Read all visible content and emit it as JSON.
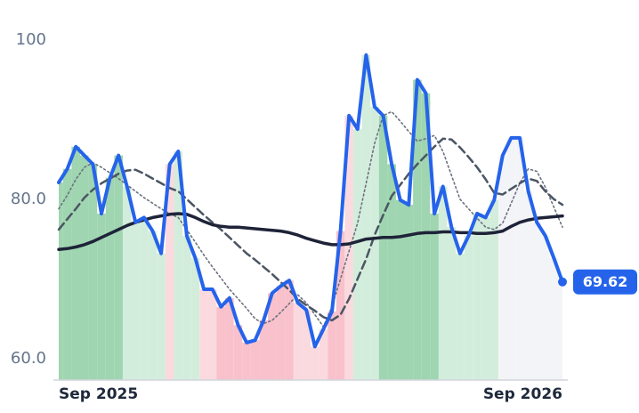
{
  "chart_data": {
    "type": "line",
    "categories": [
      "Sep 2025",
      null,
      null,
      null,
      null,
      null,
      null,
      null,
      null,
      null,
      null,
      null,
      null,
      null,
      null,
      null,
      null,
      null,
      null,
      null,
      null,
      null,
      null,
      null,
      null,
      null,
      null,
      null,
      null,
      null,
      null,
      null,
      null,
      null,
      null,
      null,
      null,
      null,
      null,
      null,
      null,
      null,
      null,
      null,
      null,
      null,
      null,
      null,
      null,
      null,
      null,
      null,
      null,
      null,
      null,
      null,
      null,
      null,
      null,
      "Sep 2026"
    ],
    "ylim": [
      57.3,
      103
    ],
    "yticks": [
      {
        "value": 60,
        "label": "60.0"
      },
      {
        "value": 80,
        "label": "80.0"
      },
      100
    ],
    "band_colors": [
      "#9fd5b0",
      "#9fd5b0",
      "#9fd5b0",
      "#9fd5b0",
      "#9fd5b0",
      "#9fd5b0",
      "#9fd5b0",
      "#9fd5b0",
      "#d3eddc",
      "#d3eddc",
      "#d3eddc",
      "#d3eddc",
      "#d3eddc",
      "#fadadf",
      "#d3eddc",
      "#d3eddc",
      "#d3eddc",
      "#fadadf",
      "#fadadf",
      "#f8c1cb",
      "#f8c1cb",
      "#f8c1cb",
      "#f8c1cb",
      "#f8c1cb",
      "#f8c1cb",
      "#f8c1cb",
      "#f8c1cb",
      "#f8c1cb",
      "#fadadf",
      "#fadadf",
      "#fadadf",
      "#fadadf",
      "#f8c1cb",
      "#f8c1cb",
      "#fadadf",
      "#d3eddc",
      "#d3eddc",
      "#d3eddc",
      "#9fd5b0",
      "#9fd5b0",
      "#9fd5b0",
      "#9fd5b0",
      "#9fd5b0",
      "#9fd5b0",
      "#9fd5b0",
      "#d3eddc",
      "#d3eddc",
      "#d3eddc",
      "#d3eddc",
      "#d3eddc",
      "#d3eddc",
      "#d3eddc",
      "#f3f4f7",
      "#f3f4f7",
      "#f3f4f7",
      "#f3f4f7",
      "#f3f4f7",
      "#f3f4f7",
      "#f3f4f7",
      "#f3f4f7"
    ],
    "series": [
      {
        "color": "#2563eb",
        "style": "solid",
        "width": 4,
        "values": [
          82.1,
          83.8,
          86.6,
          85.5,
          84.4,
          78.2,
          82.7,
          85.5,
          81.6,
          77.1,
          77.7,
          76.0,
          73.2,
          84.4,
          86.0,
          75.4,
          72.6,
          68.7,
          68.7,
          66.5,
          67.6,
          64.2,
          62.0,
          62.3,
          64.8,
          68.2,
          69.1,
          69.8,
          67.0,
          66.1,
          61.5,
          63.7,
          65.9,
          76.0,
          90.5,
          88.8,
          98.1,
          91.6,
          90.5,
          84.4,
          79.9,
          79.3,
          95.0,
          93.3,
          78.2,
          81.6,
          76.5,
          73.2,
          75.4,
          78.2,
          77.7,
          79.9,
          85.5,
          87.7,
          87.7,
          81.0,
          77.1,
          75.4,
          72.6,
          69.62
        ]
      },
      {
        "color": "#1e2338",
        "style": "solid",
        "width": 3.5,
        "values": [
          73.7,
          73.8,
          74.0,
          74.3,
          74.7,
          75.2,
          75.7,
          76.2,
          76.7,
          77.1,
          77.4,
          77.7,
          77.9,
          78.1,
          78.2,
          78.1,
          77.7,
          77.2,
          76.8,
          76.6,
          76.5,
          76.5,
          76.4,
          76.3,
          76.2,
          76.1,
          76.0,
          75.8,
          75.5,
          75.1,
          74.8,
          74.5,
          74.3,
          74.3,
          74.4,
          74.7,
          75.0,
          75.1,
          75.2,
          75.2,
          75.3,
          75.5,
          75.7,
          75.8,
          75.8,
          75.9,
          75.9,
          75.8,
          75.8,
          75.7,
          75.7,
          75.8,
          76.0,
          76.6,
          77.1,
          77.4,
          77.6,
          77.7,
          77.8,
          77.9
        ]
      },
      {
        "color": "#4b5563",
        "style": "dashed",
        "width": 2.5,
        "values": [
          76.2,
          77.5,
          78.8,
          80.2,
          81.2,
          82.0,
          82.6,
          83.2,
          83.6,
          83.7,
          83.2,
          82.6,
          82.0,
          81.4,
          81.0,
          80.0,
          79.0,
          78.0,
          77.1,
          76.2,
          75.2,
          74.2,
          73.2,
          72.4,
          71.5,
          70.6,
          69.6,
          68.6,
          67.5,
          66.7,
          66.0,
          65.2,
          64.8,
          65.5,
          67.5,
          70.0,
          72.5,
          75.5,
          78.0,
          80.4,
          81.8,
          83.2,
          84.4,
          85.5,
          86.6,
          87.6,
          87.5,
          86.5,
          85.3,
          84.0,
          82.5,
          80.8,
          80.6,
          81.3,
          82.0,
          82.6,
          82.3,
          81.0,
          80.0,
          79.3
        ]
      },
      {
        "color": "#6b7280",
        "style": "dotted",
        "width": 1.6,
        "values": [
          78.8,
          80.5,
          82.5,
          84.0,
          84.6,
          84.0,
          83.3,
          82.6,
          81.8,
          81.0,
          80.2,
          79.5,
          78.8,
          78.2,
          77.7,
          76.2,
          74.6,
          73.0,
          71.5,
          70.1,
          68.7,
          67.5,
          66.3,
          65.0,
          64.4,
          64.8,
          65.8,
          66.9,
          68.0,
          67.0,
          65.5,
          64.0,
          66.5,
          70.0,
          73.5,
          77.0,
          82.0,
          87.0,
          90.5,
          91.0,
          89.8,
          88.5,
          87.3,
          87.6,
          88.0,
          86.0,
          83.0,
          80.0,
          78.8,
          77.6,
          76.5,
          76.2,
          77.0,
          79.5,
          82.0,
          83.8,
          83.5,
          81.5,
          79.0,
          76.5
        ]
      }
    ]
  }
}
